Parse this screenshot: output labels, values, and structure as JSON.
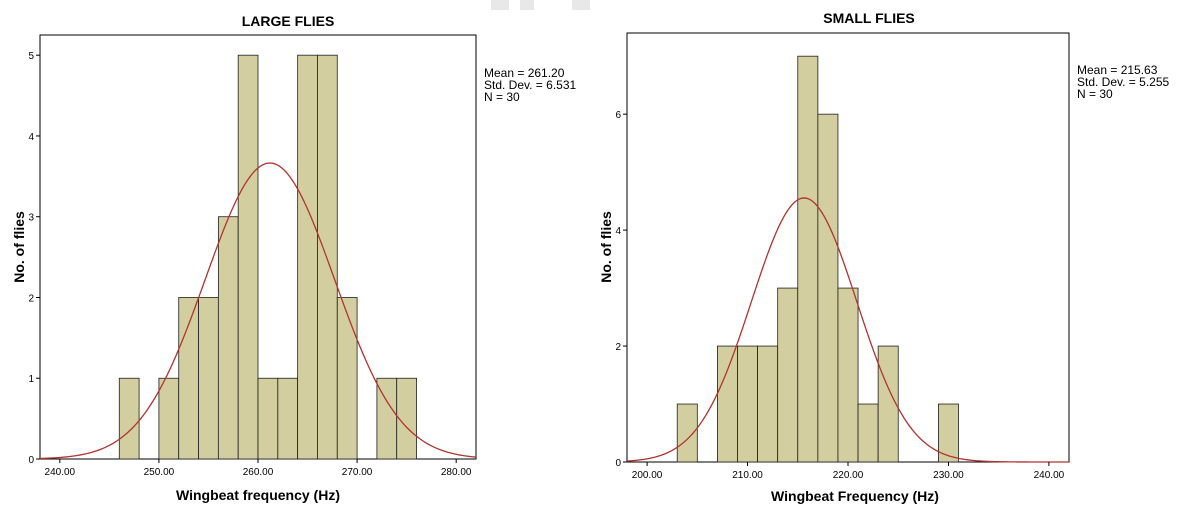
{
  "chart_data": [
    {
      "type": "bar",
      "title": "LARGE FLIES",
      "xlabel": "Wingbeat frequency (Hz)",
      "ylabel": "No. of flies",
      "xlim": [
        238,
        282
      ],
      "ylim": [
        0,
        5.25
      ],
      "x_ticks": [
        "240.00",
        "250.00",
        "260.00",
        "270.00",
        "280.00"
      ],
      "x_tick_values": [
        240,
        250,
        260,
        270,
        280
      ],
      "y_ticks": [
        "0",
        "1",
        "2",
        "3",
        "4",
        "5"
      ],
      "y_tick_values": [
        0,
        1,
        2,
        3,
        4,
        5
      ],
      "bin_width": 2,
      "bins": [
        {
          "start": 246,
          "count": 1
        },
        {
          "start": 250,
          "count": 1
        },
        {
          "start": 252,
          "count": 2
        },
        {
          "start": 254,
          "count": 2
        },
        {
          "start": 256,
          "count": 3
        },
        {
          "start": 258,
          "count": 5
        },
        {
          "start": 260,
          "count": 1
        },
        {
          "start": 262,
          "count": 1
        },
        {
          "start": 264,
          "count": 5
        },
        {
          "start": 266,
          "count": 5
        },
        {
          "start": 268,
          "count": 2
        },
        {
          "start": 272,
          "count": 1
        },
        {
          "start": 274,
          "count": 1
        }
      ],
      "stats": {
        "mean": 261.2,
        "std_dev": 6.531,
        "n": 30
      },
      "stats_text": [
        "Mean = 261.20",
        "Std. Dev. = 6.531",
        "N = 30"
      ],
      "normal_curve": true
    },
    {
      "type": "bar",
      "title": "SMALL FLIES",
      "xlabel": "Wingbeat Frequency (Hz)",
      "ylabel": "No. of flies",
      "xlim": [
        198,
        242
      ],
      "ylim": [
        0,
        7.4
      ],
      "x_ticks": [
        "200.00",
        "210.00",
        "220.00",
        "230.00",
        "240.00"
      ],
      "x_tick_values": [
        200,
        210,
        220,
        230,
        240
      ],
      "y_ticks": [
        "0",
        "2",
        "4",
        "6"
      ],
      "y_tick_values": [
        0,
        2,
        4,
        6
      ],
      "bin_width": 2,
      "bins": [
        {
          "start": 203,
          "count": 1
        },
        {
          "start": 207,
          "count": 2
        },
        {
          "start": 209,
          "count": 2
        },
        {
          "start": 211,
          "count": 2
        },
        {
          "start": 213,
          "count": 3
        },
        {
          "start": 215,
          "count": 7
        },
        {
          "start": 217,
          "count": 6
        },
        {
          "start": 219,
          "count": 3
        },
        {
          "start": 221,
          "count": 1
        },
        {
          "start": 223,
          "count": 2
        },
        {
          "start": 229,
          "count": 1
        }
      ],
      "stats": {
        "mean": 215.63,
        "std_dev": 5.255,
        "n": 30
      },
      "stats_text": [
        "Mean = 215.63",
        "Std. Dev. = 5.255",
        "N = 30"
      ],
      "normal_curve": true
    }
  ],
  "colors": {
    "bar_fill": "#d3cea0",
    "bar_stroke": "#1f1f1f",
    "curve": "#b2332f"
  }
}
